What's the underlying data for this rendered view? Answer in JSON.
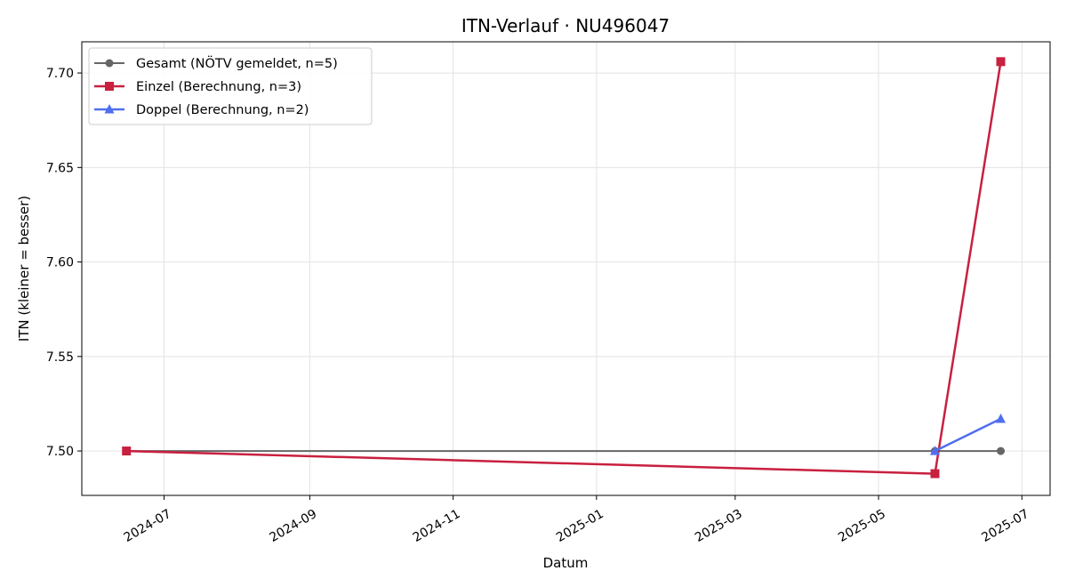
{
  "chart_data": {
    "type": "line",
    "title": "ITN-Verlauf · NU496047",
    "xlabel": "Datum",
    "ylabel": "ITN  (kleiner = besser)",
    "x_type": "date",
    "xlim": [
      "2024-05-27",
      "2025-07-13"
    ],
    "ylim": [
      7.4765,
      7.7165
    ],
    "x_ticks": [
      "2024-07-01",
      "2024-09-01",
      "2024-11-01",
      "2025-01-01",
      "2025-03-01",
      "2025-05-01",
      "2025-07-01"
    ],
    "x_tick_labels": [
      "2024-07",
      "2024-09",
      "2024-11",
      "2025-01",
      "2025-03",
      "2025-05",
      "2025-07"
    ],
    "y_ticks": [
      7.5,
      7.55,
      7.6,
      7.65,
      7.7
    ],
    "y_tick_labels": [
      "7.50",
      "7.55",
      "7.60",
      "7.65",
      "7.70"
    ],
    "grid": true,
    "legend_position": "top-left",
    "series": [
      {
        "name": "Gesamt (NÖTV gemeldet, n=5)",
        "color": "#666666",
        "marker": "circle",
        "points": [
          {
            "x": "2024-06-15",
            "y": 7.5
          },
          {
            "x": "2025-05-25",
            "y": 7.5
          },
          {
            "x": "2025-06-22",
            "y": 7.5
          }
        ]
      },
      {
        "name": "Einzel (Berechnung, n=3)",
        "color": "#c8203f",
        "marker": "square",
        "points": [
          {
            "x": "2024-06-15",
            "y": 7.5
          },
          {
            "x": "2025-05-25",
            "y": 7.488
          },
          {
            "x": "2025-06-22",
            "y": 7.706
          }
        ]
      },
      {
        "name": "Doppel (Berechnung, n=2)",
        "color": "#4f6ff0",
        "marker": "triangle",
        "points": [
          {
            "x": "2025-05-25",
            "y": 7.5
          },
          {
            "x": "2025-06-22",
            "y": 7.517
          }
        ]
      }
    ]
  }
}
